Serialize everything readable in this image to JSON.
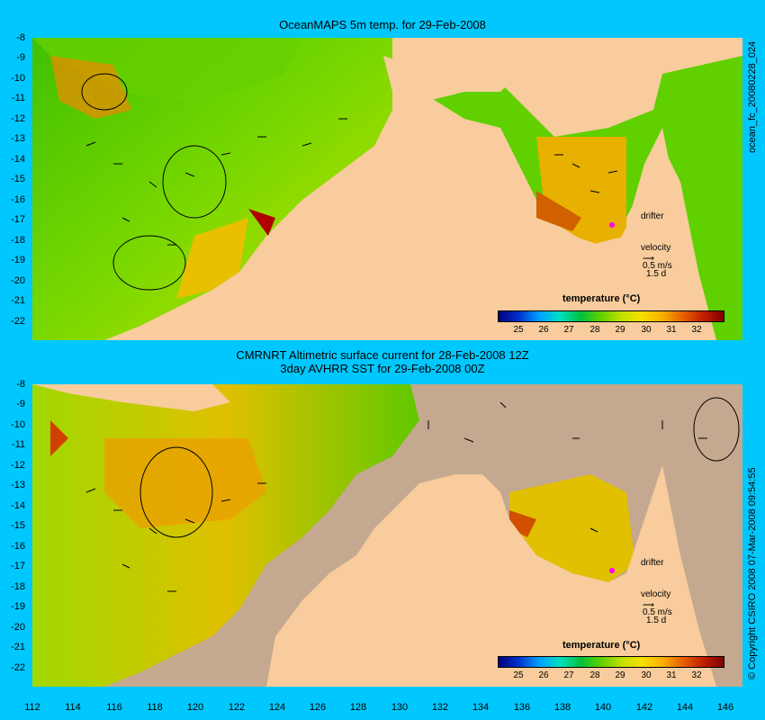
{
  "top_title": "OceanMAPS 5m temp. for 29-Feb-2008",
  "bottom_title_line1": "CMRNRT Altimetric surface current for 28-Feb-2008 12Z",
  "bottom_title_line2": "3day AVHRR SST for 29-Feb-2008 00Z",
  "side_label_top": "ocean_fc_20080228_024",
  "side_label_bottom": "© Copyright CSIRO 2008   07-Mar-2008 09:54:55",
  "y_ticks": [
    "-8",
    "-9",
    "-10",
    "-11",
    "-12",
    "-13",
    "-14",
    "-15",
    "-16",
    "-17",
    "-18",
    "-19",
    "-20",
    "-21",
    "-22"
  ],
  "x_ticks": [
    "112",
    "114",
    "116",
    "118",
    "120",
    "122",
    "124",
    "126",
    "128",
    "130",
    "132",
    "134",
    "136",
    "138",
    "140",
    "142",
    "144",
    "146"
  ],
  "legend": {
    "title": "temperature (°C)",
    "ticks": [
      "25",
      "26",
      "27",
      "28",
      "29",
      "30",
      "31",
      "32"
    ],
    "colors": [
      "#00007f",
      "#0033cc",
      "#00a0ff",
      "#00e0c0",
      "#00c040",
      "#60d000",
      "#c0e000",
      "#f8e000",
      "#f8b000",
      "#e86000",
      "#c02000",
      "#800000"
    ]
  },
  "drifter_label": "drifter",
  "velocity_label": "velocity",
  "velocity_value": "0.5 m/s",
  "velocity_days": "1.5 d",
  "colors": {
    "background": "#00c8ff",
    "land": "#f8cc9c",
    "nodata": "#c4a890",
    "drifter": "#ff00ff"
  }
}
